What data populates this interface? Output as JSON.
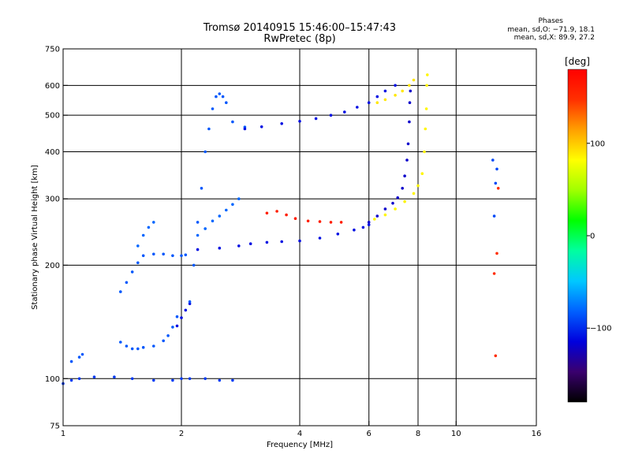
{
  "header": {
    "title_line1": "Tromsø 20140915 15:46:00–15:47:43",
    "title_line2": "RwPretec (8p)"
  },
  "phase_stats": {
    "title": "Phases",
    "o_line": "mean, sd,O: −71.9, 18.1",
    "x_line": "mean, sd,X:  89.9, 27.2"
  },
  "chart_data": {
    "type": "scatter",
    "title": "Tromsø 20140915 15:46:00–15:47:43",
    "subtitle": "RwPretec (8p)",
    "xlabel": "Frequency [MHz]",
    "ylabel": "Stationary phase Virtual Height [km]",
    "x_scale": "log",
    "y_scale": "log",
    "xlim": [
      1,
      16
    ],
    "ylim": [
      75,
      750
    ],
    "x_ticks": [
      1,
      2,
      4,
      6,
      8,
      10,
      16
    ],
    "y_ticks": [
      75,
      100,
      200,
      300,
      400,
      500,
      600,
      750
    ],
    "x_gridlines": [
      2,
      4,
      6,
      8,
      10
    ],
    "y_gridlines": [
      100,
      200,
      300,
      400,
      500,
      600
    ],
    "grid": true,
    "colorbar": {
      "label": "[deg]",
      "range": [
        -180,
        180
      ],
      "ticks": [
        100,
        0,
        -100
      ],
      "colors": [
        "#000000",
        "#3a006e",
        "#0000dd",
        "#0060ff",
        "#00c8ff",
        "#00ffa0",
        "#00ff00",
        "#a0ff00",
        "#ffff00",
        "#ffa000",
        "#ff3000",
        "#ff0000"
      ]
    },
    "traces": [
      {
        "phase": -95,
        "points": [
          [
            1.0,
            97
          ],
          [
            1.05,
            99
          ],
          [
            1.1,
            100
          ],
          [
            1.2,
            101
          ],
          [
            1.35,
            101
          ],
          [
            1.5,
            100
          ],
          [
            1.7,
            99
          ],
          [
            1.9,
            99
          ],
          [
            2.0,
            100
          ],
          [
            2.1,
            100
          ],
          [
            2.3,
            100
          ],
          [
            2.5,
            99
          ],
          [
            2.7,
            99
          ]
        ]
      },
      {
        "phase": -85,
        "points": [
          [
            1.05,
            111
          ],
          [
            1.1,
            114
          ],
          [
            1.12,
            116
          ],
          [
            1.4,
            125
          ],
          [
            1.45,
            122
          ],
          [
            1.5,
            120
          ],
          [
            1.55,
            120
          ],
          [
            1.6,
            121
          ],
          [
            1.7,
            122
          ],
          [
            1.8,
            126
          ],
          [
            1.85,
            130
          ],
          [
            1.9,
            137
          ],
          [
            1.95,
            146
          ]
        ]
      },
      {
        "phase": -85,
        "points": [
          [
            1.4,
            170
          ],
          [
            1.45,
            180
          ],
          [
            1.5,
            192
          ],
          [
            1.55,
            203
          ],
          [
            1.6,
            212
          ],
          [
            1.7,
            214
          ],
          [
            1.8,
            214
          ],
          [
            1.9,
            212
          ],
          [
            2.0,
            212
          ],
          [
            2.05,
            213
          ]
        ]
      },
      {
        "phase": -80,
        "points": [
          [
            1.55,
            225
          ],
          [
            1.6,
            240
          ],
          [
            1.65,
            252
          ],
          [
            1.7,
            260
          ]
        ]
      },
      {
        "phase": -110,
        "points": [
          [
            1.95,
            138
          ],
          [
            2.0,
            145
          ],
          [
            2.05,
            152
          ],
          [
            2.1,
            158
          ]
        ]
      },
      {
        "phase": -85,
        "points": [
          [
            2.1,
            160
          ],
          [
            2.15,
            200
          ],
          [
            2.2,
            260
          ],
          [
            2.25,
            320
          ],
          [
            2.3,
            400
          ],
          [
            2.35,
            460
          ],
          [
            2.4,
            520
          ],
          [
            2.45,
            560
          ],
          [
            2.5,
            570
          ],
          [
            2.55,
            560
          ],
          [
            2.6,
            540
          ],
          [
            2.7,
            480
          ],
          [
            2.9,
            465
          ]
        ]
      },
      {
        "phase": -80,
        "points": [
          [
            2.2,
            240
          ],
          [
            2.3,
            250
          ],
          [
            2.4,
            262
          ],
          [
            2.5,
            270
          ],
          [
            2.6,
            280
          ],
          [
            2.7,
            290
          ],
          [
            2.8,
            300
          ]
        ]
      },
      {
        "phase": -110,
        "points": [
          [
            2.2,
            220
          ],
          [
            2.5,
            222
          ],
          [
            2.8,
            225
          ],
          [
            3.0,
            228
          ],
          [
            3.3,
            230
          ],
          [
            3.6,
            231
          ],
          [
            4.0,
            232
          ],
          [
            4.5,
            236
          ],
          [
            5.0,
            242
          ],
          [
            5.5,
            248
          ],
          [
            5.8,
            252
          ],
          [
            6.0,
            256
          ]
        ]
      },
      {
        "phase": -110,
        "points": [
          [
            2.9,
            460
          ],
          [
            3.2,
            466
          ],
          [
            3.6,
            475
          ],
          [
            4.0,
            482
          ],
          [
            4.4,
            490
          ],
          [
            4.8,
            500
          ],
          [
            5.2,
            510
          ],
          [
            5.6,
            525
          ],
          [
            6.0,
            540
          ],
          [
            6.3,
            560
          ],
          [
            6.6,
            580
          ],
          [
            7.0,
            600
          ]
        ]
      },
      {
        "phase": 160,
        "points": [
          [
            3.3,
            275
          ],
          [
            3.5,
            278
          ],
          [
            3.7,
            272
          ],
          [
            3.9,
            266
          ],
          [
            4.2,
            262
          ],
          [
            4.5,
            261
          ],
          [
            4.8,
            260
          ],
          [
            5.1,
            260
          ]
        ]
      },
      {
        "phase": -120,
        "points": [
          [
            6.0,
            260
          ],
          [
            6.3,
            270
          ],
          [
            6.6,
            282
          ],
          [
            6.9,
            292
          ],
          [
            7.1,
            302
          ],
          [
            7.3,
            320
          ],
          [
            7.4,
            345
          ],
          [
            7.5,
            380
          ],
          [
            7.55,
            420
          ],
          [
            7.6,
            480
          ],
          [
            7.62,
            540
          ],
          [
            7.65,
            580
          ]
        ]
      },
      {
        "phase": 85,
        "points": [
          [
            6.2,
            265
          ],
          [
            6.6,
            272
          ],
          [
            7.0,
            282
          ],
          [
            7.4,
            295
          ],
          [
            7.8,
            310
          ],
          [
            8.0,
            325
          ],
          [
            8.2,
            350
          ],
          [
            8.3,
            400
          ],
          [
            8.35,
            460
          ],
          [
            8.4,
            520
          ],
          [
            8.42,
            600
          ],
          [
            8.45,
            640
          ]
        ]
      },
      {
        "phase": 90,
        "points": [
          [
            6.3,
            540
          ],
          [
            6.6,
            550
          ],
          [
            7.0,
            565
          ],
          [
            7.3,
            580
          ],
          [
            7.6,
            600
          ],
          [
            7.8,
            620
          ]
        ]
      },
      {
        "phase": -90,
        "points": [
          [
            12.5,
            270
          ],
          [
            12.6,
            330
          ],
          [
            12.7,
            360
          ],
          [
            12.4,
            380
          ]
        ]
      },
      {
        "phase": 150,
        "points": [
          [
            12.6,
            115
          ],
          [
            12.5,
            190
          ],
          [
            12.7,
            215
          ],
          [
            12.8,
            320
          ]
        ]
      }
    ]
  }
}
